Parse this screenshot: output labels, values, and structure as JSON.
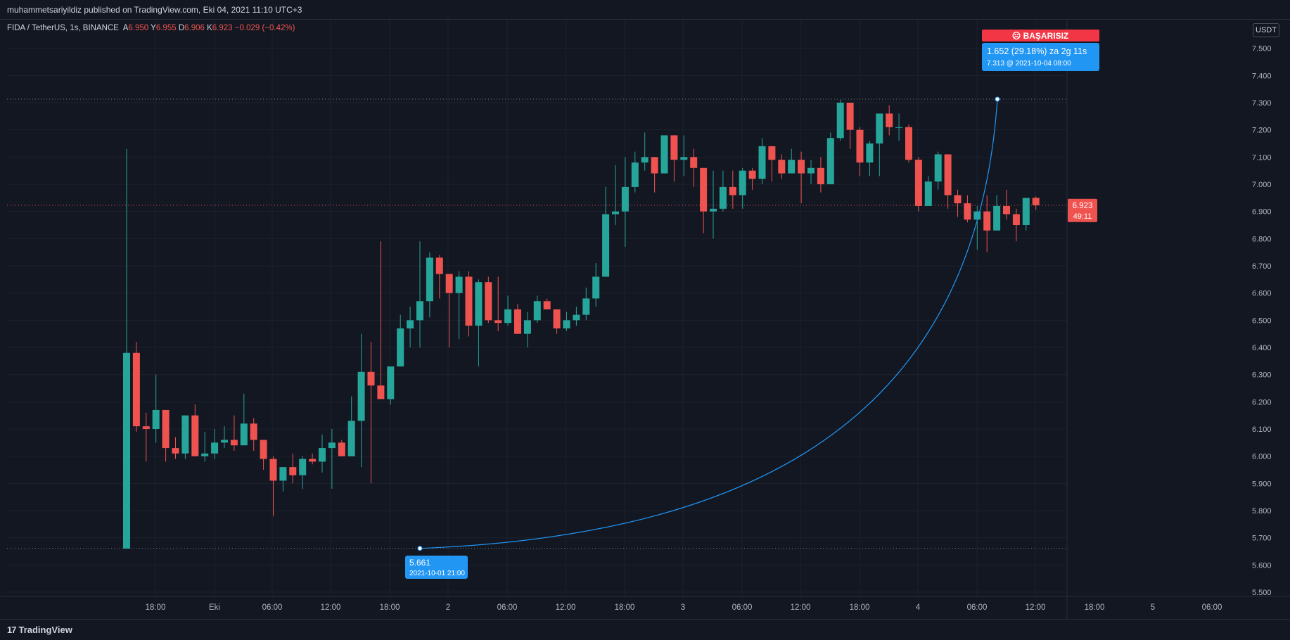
{
  "header": {
    "publish_line": "muhammetsariyildiz published on TradingView.com, Eki 04, 2021 11:10 UTC+3"
  },
  "legend": {
    "symbol": "FIDA / TetherUS, 1s, BINANCE",
    "o_label": "A",
    "o_value": "6.950",
    "h_label": "Y",
    "h_value": "6.955",
    "l_label": "D",
    "l_value": "6.906",
    "c_label": "K",
    "c_value": "6.923",
    "change": "−0.029 (−0.42%)"
  },
  "currency_button": "USDT",
  "footer": {
    "logo_text": "TradingView"
  },
  "colors": {
    "background": "#131722",
    "up": "#26a69a",
    "down": "#ef5350",
    "grid": "#1e222d",
    "accent_blue": "#2196f3",
    "fail_red": "#f23645"
  },
  "chart_data": {
    "type": "candlestick",
    "ylim": [
      5.5,
      7.6
    ],
    "y_ticks": [
      "7.500",
      "7.400",
      "7.300",
      "7.200",
      "7.100",
      "7.000",
      "6.900",
      "6.800",
      "6.700",
      "6.600",
      "6.500",
      "6.400",
      "6.300",
      "6.200",
      "6.100",
      "6.000",
      "5.900",
      "5.800",
      "5.700",
      "5.600",
      "5.500"
    ],
    "x_ticks": [
      "18:00",
      "Eki",
      "06:00",
      "12:00",
      "18:00",
      "2",
      "06:00",
      "12:00",
      "18:00",
      "3",
      "06:00",
      "12:00",
      "18:00",
      "4",
      "06:00",
      "12:00",
      "18:00",
      "5",
      "06:00"
    ],
    "last_price": "6.923",
    "countdown": "49:11",
    "candles": [
      [
        5.66,
        6.38,
        7.13,
        5.66
      ],
      [
        6.38,
        6.11,
        6.42,
        6.09
      ],
      [
        6.11,
        6.1,
        6.16,
        5.98
      ],
      [
        6.1,
        6.17,
        6.3,
        6.05
      ],
      [
        6.17,
        6.03,
        6.17,
        5.98
      ],
      [
        6.03,
        6.01,
        6.07,
        5.99
      ],
      [
        6.01,
        6.15,
        6.15,
        5.99
      ],
      [
        6.15,
        6.0,
        6.19,
        6.0
      ],
      [
        6.0,
        6.01,
        6.09,
        5.98
      ],
      [
        6.01,
        6.05,
        6.1,
        5.99
      ],
      [
        6.05,
        6.06,
        6.11,
        6.03
      ],
      [
        6.06,
        6.04,
        6.15,
        6.02
      ],
      [
        6.04,
        6.12,
        6.23,
        6.04
      ],
      [
        6.12,
        6.06,
        6.14,
        6.02
      ],
      [
        6.06,
        5.99,
        6.06,
        5.95
      ],
      [
        5.99,
        5.91,
        6.0,
        5.78
      ],
      [
        5.91,
        5.96,
        5.96,
        5.87
      ],
      [
        5.96,
        5.93,
        6.01,
        5.9
      ],
      [
        5.93,
        5.99,
        6.0,
        5.88
      ],
      [
        5.99,
        5.98,
        6.01,
        5.97
      ],
      [
        5.98,
        6.03,
        6.08,
        5.94
      ],
      [
        6.03,
        6.05,
        6.1,
        5.88
      ],
      [
        6.05,
        6.0,
        6.06,
        6.0
      ],
      [
        6.0,
        6.13,
        6.22,
        6.0
      ],
      [
        6.13,
        6.31,
        6.45,
        5.96
      ],
      [
        6.31,
        6.26,
        6.42,
        5.9
      ],
      [
        6.26,
        6.21,
        6.79,
        6.21
      ],
      [
        6.21,
        6.33,
        6.33,
        6.19
      ],
      [
        6.33,
        6.47,
        6.52,
        6.33
      ],
      [
        6.47,
        6.5,
        6.55,
        6.4
      ],
      [
        6.5,
        6.57,
        6.79,
        6.4
      ],
      [
        6.57,
        6.73,
        6.75,
        6.51
      ],
      [
        6.73,
        6.67,
        6.74,
        6.58
      ],
      [
        6.67,
        6.6,
        6.67,
        6.4
      ],
      [
        6.6,
        6.66,
        6.68,
        6.43
      ],
      [
        6.66,
        6.48,
        6.68,
        6.44
      ],
      [
        6.48,
        6.64,
        6.65,
        6.33
      ],
      [
        6.64,
        6.5,
        6.66,
        6.49
      ],
      [
        6.5,
        6.49,
        6.66,
        6.46
      ],
      [
        6.49,
        6.54,
        6.59,
        6.48
      ],
      [
        6.54,
        6.45,
        6.56,
        6.45
      ],
      [
        6.45,
        6.5,
        6.53,
        6.4
      ],
      [
        6.5,
        6.57,
        6.59,
        6.49
      ],
      [
        6.57,
        6.54,
        6.58,
        6.54
      ],
      [
        6.54,
        6.47,
        6.54,
        6.45
      ],
      [
        6.47,
        6.5,
        6.53,
        6.46
      ],
      [
        6.5,
        6.52,
        6.55,
        6.48
      ],
      [
        6.52,
        6.58,
        6.62,
        6.5
      ],
      [
        6.58,
        6.66,
        6.71,
        6.55
      ],
      [
        6.66,
        6.89,
        6.99,
        6.66
      ],
      [
        6.89,
        6.9,
        7.07,
        6.85
      ],
      [
        6.9,
        6.99,
        7.1,
        6.77
      ],
      [
        6.99,
        7.08,
        7.12,
        6.97
      ],
      [
        7.08,
        7.1,
        7.19,
        7.05
      ],
      [
        7.1,
        7.04,
        7.1,
        6.97
      ],
      [
        7.04,
        7.18,
        7.18,
        7.04
      ],
      [
        7.18,
        7.09,
        7.18,
        7.01
      ],
      [
        7.09,
        7.1,
        7.18,
        7.03
      ],
      [
        7.1,
        7.06,
        7.13,
        6.99
      ],
      [
        7.06,
        6.9,
        7.06,
        6.82
      ],
      [
        6.9,
        6.91,
        7.05,
        6.8
      ],
      [
        6.91,
        6.99,
        7.05,
        6.9
      ],
      [
        6.99,
        6.96,
        7.05,
        6.91
      ],
      [
        6.96,
        7.05,
        7.06,
        6.91
      ],
      [
        7.05,
        7.02,
        7.06,
        6.98
      ],
      [
        7.02,
        7.14,
        7.17,
        7.0
      ],
      [
        7.14,
        7.09,
        7.14,
        7.01
      ],
      [
        7.09,
        7.04,
        7.11,
        7.02
      ],
      [
        7.04,
        7.09,
        7.13,
        7.04
      ],
      [
        7.09,
        7.04,
        7.12,
        6.93
      ],
      [
        7.04,
        7.06,
        7.09,
        7.0
      ],
      [
        7.06,
        7.0,
        7.1,
        6.97
      ],
      [
        7.0,
        7.17,
        7.19,
        7.02
      ],
      [
        7.17,
        7.3,
        7.31,
        7.16
      ],
      [
        7.3,
        7.2,
        7.3,
        7.13
      ],
      [
        7.2,
        7.08,
        7.21,
        7.03
      ],
      [
        7.08,
        7.15,
        7.16,
        7.03
      ],
      [
        7.15,
        7.26,
        7.26,
        7.03
      ],
      [
        7.26,
        7.21,
        7.29,
        7.18
      ],
      [
        7.21,
        7.21,
        7.26,
        7.16
      ],
      [
        7.21,
        7.09,
        7.22,
        7.08
      ],
      [
        7.09,
        6.92,
        7.1,
        6.9
      ],
      [
        6.92,
        7.01,
        7.03,
        6.92
      ],
      [
        7.01,
        7.11,
        7.12,
        6.98
      ],
      [
        7.11,
        6.96,
        7.11,
        6.91
      ],
      [
        6.96,
        6.93,
        6.98,
        6.88
      ],
      [
        6.93,
        6.87,
        6.96,
        6.86
      ],
      [
        6.87,
        6.9,
        6.92,
        6.76
      ],
      [
        6.9,
        6.83,
        6.96,
        6.75
      ],
      [
        6.83,
        6.92,
        6.96,
        6.9
      ],
      [
        6.92,
        6.89,
        6.98,
        6.87
      ],
      [
        6.89,
        6.85,
        6.91,
        6.79
      ],
      [
        6.85,
        6.95,
        6.95,
        6.83
      ],
      [
        6.95,
        6.923,
        6.955,
        6.906
      ]
    ],
    "annotations": {
      "fail_label": "BAŞARISIZ",
      "target_text": "1.652 (29.18%) za 2g 11s",
      "target_sub": "7.313 @ 2021-10-04  08:00",
      "entry_price": "5.661",
      "entry_time": "2021-10-01 21:00",
      "target_price": 7.313,
      "entry_value": 5.661
    }
  }
}
